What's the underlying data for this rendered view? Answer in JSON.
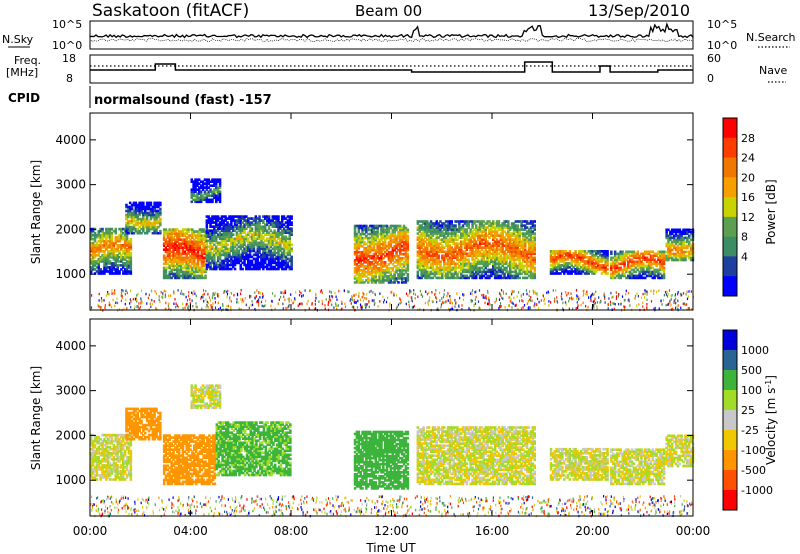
{
  "header": {
    "radar": "Saskatoon (fitACF)",
    "beam": "Beam 00",
    "date": "13/Sep/2010"
  },
  "strip1": {
    "left_label": "N.Sky",
    "right_label": "N.Search",
    "left_ticks": [
      "10^5",
      "10^0"
    ],
    "right_ticks": [
      "10^5",
      "10^0"
    ]
  },
  "strip2": {
    "left_label_1": "Freq.",
    "left_label_2": "[MHz]",
    "right_label": "Nave",
    "left_ticks": [
      "18",
      "8"
    ],
    "right_ticks": [
      "60",
      "0"
    ]
  },
  "cpid": {
    "label": "CPID",
    "value": "normalsound (fast) -157"
  },
  "colors": {
    "power_scale": [
      "#0000ff",
      "#1f3fa0",
      "#3c8c64",
      "#5aa050",
      "#c8d200",
      "#f5a000",
      "#f07800",
      "#ff3c00",
      "#ff0000"
    ],
    "velocity_scale": [
      "#ff0000",
      "#ff5000",
      "#ff9600",
      "#f0c800",
      "#c8c8c8",
      "#a0dc28",
      "#3cb43c",
      "#286496",
      "#0000dc"
    ]
  },
  "chart_data": [
    {
      "type": "heatmap",
      "title": "Power",
      "xlabel": "Time UT",
      "ylabel": "Slant Range [km]",
      "colorbar_label": "Power [dB]",
      "colorbar_ticks": [
        "28",
        "24",
        "20",
        "16",
        "12",
        "8",
        "4"
      ],
      "x_ticks": [
        "00:00",
        "04:00",
        "08:00",
        "12:00",
        "16:00",
        "20:00",
        "00:00"
      ],
      "y_ticks": [
        "1000",
        "2000",
        "3000",
        "4000"
      ],
      "ylim": [
        200,
        4600
      ],
      "xlim_hours": [
        0,
        24
      ],
      "echo_regions": [
        {
          "t0": 0.0,
          "t1": 1.6,
          "r0": 1000,
          "r1": 2000,
          "center_db": 22
        },
        {
          "t0": 1.4,
          "t1": 2.8,
          "r0": 1900,
          "r1": 2600,
          "center_db": 18
        },
        {
          "t0": 2.9,
          "t1": 4.6,
          "r0": 900,
          "r1": 2000,
          "center_db": 28
        },
        {
          "t0": 4.6,
          "t1": 8.0,
          "r0": 1100,
          "r1": 2300,
          "center_db": 16
        },
        {
          "t0": 4.0,
          "t1": 5.2,
          "r0": 2600,
          "r1": 3100,
          "center_db": 12
        },
        {
          "t0": 10.5,
          "t1": 12.6,
          "r0": 800,
          "r1": 2100,
          "center_db": 26
        },
        {
          "t0": 13.0,
          "t1": 17.7,
          "r0": 900,
          "r1": 2200,
          "center_db": 24
        },
        {
          "t0": 18.3,
          "t1": 20.6,
          "r0": 1000,
          "r1": 1500,
          "center_db": 26
        },
        {
          "t0": 20.7,
          "t1": 22.8,
          "r0": 900,
          "r1": 1500,
          "center_db": 26
        },
        {
          "t0": 22.9,
          "t1": 24.0,
          "r0": 1300,
          "r1": 2000,
          "center_db": 22
        }
      ]
    },
    {
      "type": "heatmap",
      "title": "Velocity",
      "xlabel": "Time UT",
      "ylabel": "Slant Range [km]",
      "colorbar_label": "Velocity [m s",
      "colorbar_label_superscript": "-1",
      "colorbar_label_end": "]",
      "colorbar_ticks": [
        "1000",
        "500",
        "100",
        "25",
        "-25",
        "-100",
        "-500",
        "-1000"
      ],
      "x_ticks": [
        "00:00",
        "04:00",
        "08:00",
        "12:00",
        "16:00",
        "20:00",
        "00:00"
      ],
      "y_ticks": [
        "1000",
        "2000",
        "3000",
        "4000"
      ],
      "ylim": [
        200,
        4600
      ],
      "xlim_hours": [
        0,
        24
      ],
      "echo_regions": [
        {
          "t0": 0.0,
          "t1": 1.6,
          "r0": 1000,
          "r1": 2000,
          "velocity": 0
        },
        {
          "t0": 1.4,
          "t1": 2.8,
          "r0": 1900,
          "r1": 2600,
          "velocity": -300
        },
        {
          "t0": 2.9,
          "t1": 5.0,
          "r0": 900,
          "r1": 2000,
          "velocity": -400
        },
        {
          "t0": 5.0,
          "t1": 8.0,
          "r0": 1100,
          "r1": 2300,
          "velocity": 150
        },
        {
          "t0": 4.0,
          "t1": 5.2,
          "r0": 2600,
          "r1": 3100,
          "velocity": 0
        },
        {
          "t0": 10.5,
          "t1": 12.6,
          "r0": 800,
          "r1": 2100,
          "velocity": 200
        },
        {
          "t0": 13.0,
          "t1": 17.7,
          "r0": 900,
          "r1": 2200,
          "velocity": 0
        },
        {
          "t0": 18.3,
          "t1": 20.6,
          "r0": 1000,
          "r1": 1700,
          "velocity": 0
        },
        {
          "t0": 20.7,
          "t1": 22.8,
          "r0": 900,
          "r1": 1700,
          "velocity": 0
        },
        {
          "t0": 22.9,
          "t1": 24.0,
          "r0": 1300,
          "r1": 2000,
          "velocity": 0
        }
      ]
    }
  ]
}
